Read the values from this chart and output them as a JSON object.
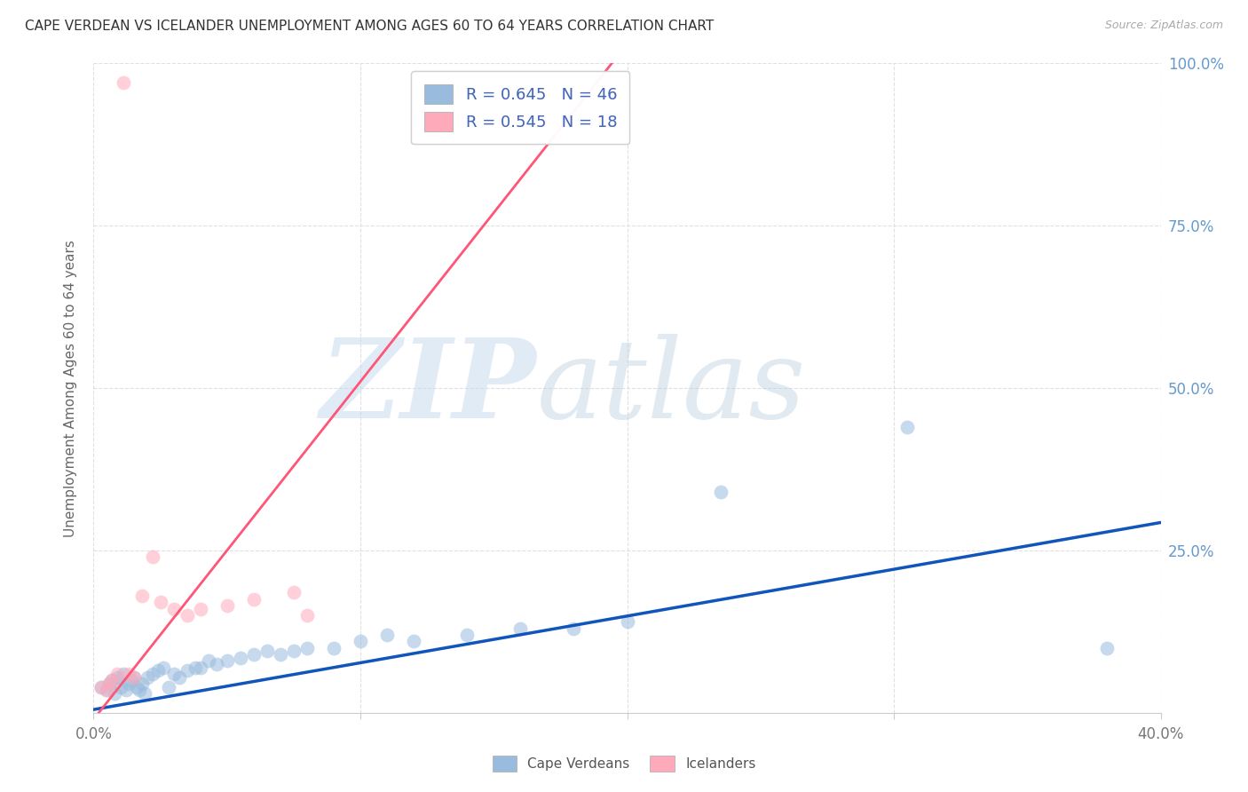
{
  "title": "CAPE VERDEAN VS ICELANDER UNEMPLOYMENT AMONG AGES 60 TO 64 YEARS CORRELATION CHART",
  "source": "Source: ZipAtlas.com",
  "ylabel": "Unemployment Among Ages 60 to 64 years",
  "xlim": [
    0.0,
    0.4
  ],
  "ylim": [
    0.0,
    1.0
  ],
  "xticks": [
    0.0,
    0.1,
    0.2,
    0.3,
    0.4
  ],
  "xtick_labels": [
    "0.0%",
    "",
    "",
    "",
    "40.0%"
  ],
  "yticks": [
    0.0,
    0.25,
    0.5,
    0.75,
    1.0
  ],
  "ytick_labels": [
    "",
    "25.0%",
    "50.0%",
    "75.0%",
    "100.0%"
  ],
  "blue_scatter_color": "#99BBDD",
  "pink_scatter_color": "#FFAABB",
  "blue_line_color": "#1155BB",
  "pink_line_color": "#FF5577",
  "R_blue": 0.645,
  "N_blue": 46,
  "R_pink": 0.545,
  "N_pink": 18,
  "blue_slope": 0.72,
  "blue_intercept": 0.005,
  "pink_slope": 5.2,
  "pink_intercept": -0.01,
  "cape_verdean_x": [
    0.003,
    0.005,
    0.006,
    0.007,
    0.008,
    0.009,
    0.01,
    0.011,
    0.012,
    0.013,
    0.014,
    0.015,
    0.016,
    0.017,
    0.018,
    0.019,
    0.02,
    0.022,
    0.024,
    0.026,
    0.028,
    0.03,
    0.032,
    0.035,
    0.038,
    0.04,
    0.043,
    0.046,
    0.05,
    0.055,
    0.06,
    0.065,
    0.07,
    0.075,
    0.08,
    0.09,
    0.1,
    0.11,
    0.12,
    0.14,
    0.16,
    0.18,
    0.2,
    0.235,
    0.305,
    0.38
  ],
  "cape_verdean_y": [
    0.04,
    0.035,
    0.045,
    0.05,
    0.03,
    0.055,
    0.04,
    0.06,
    0.035,
    0.045,
    0.05,
    0.055,
    0.04,
    0.035,
    0.045,
    0.03,
    0.055,
    0.06,
    0.065,
    0.07,
    0.04,
    0.06,
    0.055,
    0.065,
    0.07,
    0.07,
    0.08,
    0.075,
    0.08,
    0.085,
    0.09,
    0.095,
    0.09,
    0.095,
    0.1,
    0.1,
    0.11,
    0.12,
    0.11,
    0.12,
    0.13,
    0.13,
    0.14,
    0.34,
    0.44,
    0.1
  ],
  "icelander_x": [
    0.003,
    0.005,
    0.006,
    0.007,
    0.009,
    0.011,
    0.013,
    0.015,
    0.018,
    0.022,
    0.025,
    0.03,
    0.035,
    0.04,
    0.05,
    0.06,
    0.075,
    0.08
  ],
  "icelander_y": [
    0.04,
    0.035,
    0.045,
    0.05,
    0.06,
    0.97,
    0.06,
    0.055,
    0.18,
    0.24,
    0.17,
    0.16,
    0.15,
    0.16,
    0.165,
    0.175,
    0.185,
    0.15
  ],
  "watermark_zip": "ZIP",
  "watermark_atlas": "atlas",
  "background_color": "#FFFFFF",
  "grid_color": "#DDDDDD",
  "axis_tick_color": "#6699CC",
  "title_color": "#333333",
  "ylabel_color": "#666666",
  "source_color": "#AAAAAA",
  "legend_text_color": "#4466BB"
}
